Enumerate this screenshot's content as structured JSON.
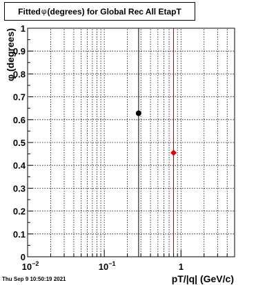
{
  "title": {
    "prefix": "Fitted ",
    "symbol": "φ",
    "suffix": " (degrees) for Global Rec All EtapT"
  },
  "timestamp": "Thu Sep  9 10:50:19 2021",
  "chart_data": {
    "type": "scatter",
    "title": "Fitted φ (degrees) for Global Rec All EtapT",
    "xlabel": "pT/|q| (GeV/c)",
    "ylabel": "φ (degrees)",
    "xscale": "log",
    "xlim": [
      0.01,
      5.0
    ],
    "ylim": [
      0,
      1
    ],
    "x_tick_labels": [
      "10^-2",
      "10^-1",
      "1"
    ],
    "y_tick_labels": [
      "0",
      "0.1",
      "0.2",
      "0.3",
      "0.4",
      "0.5",
      "0.6",
      "0.7",
      "0.8",
      "0.9",
      "1"
    ],
    "grid": true,
    "series": [
      {
        "color": "#000000",
        "marker": "circle",
        "points": [
          {
            "x": 0.28,
            "y": 0.628
          }
        ]
      },
      {
        "color": "#e00000",
        "marker": "diamond",
        "points": [
          {
            "x": 0.8,
            "y": 0.455
          }
        ]
      }
    ],
    "vertical_lines": [
      {
        "x": 0.28,
        "color": "#000000"
      },
      {
        "x": 0.8,
        "color": "#8b1010"
      }
    ]
  }
}
